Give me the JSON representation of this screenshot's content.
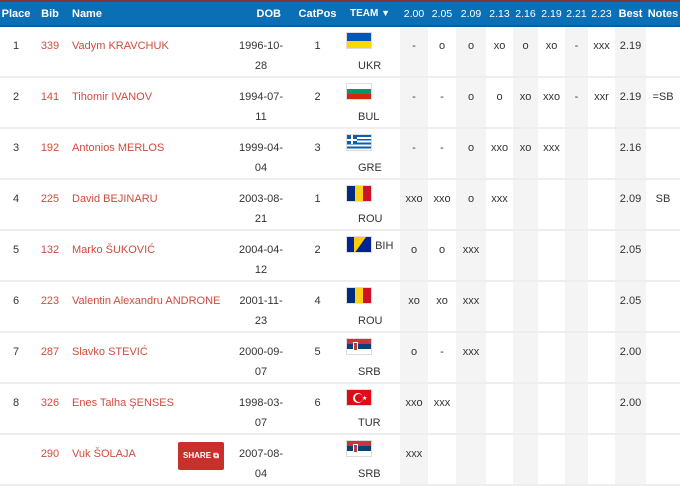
{
  "header": {
    "place": "Place",
    "bib": "Bib",
    "name": "Name",
    "dob": "DOB",
    "catpos": "CatPos",
    "team": "TEAM",
    "filter_icon": "filter-icon",
    "heights": [
      "2.00",
      "2.05",
      "2.09",
      "2.13",
      "2.16",
      "2.19",
      "2.21",
      "2.23"
    ],
    "best": "Best",
    "notes": "Notes"
  },
  "share_label": "SHARE",
  "rows": [
    {
      "place": "1",
      "bib": "339",
      "name": "Vadym KRAVCHUK",
      "dob": "1996-10-28",
      "catpos": "1",
      "team": "UKR",
      "flag": "ukr",
      "attempts": [
        "-",
        "o",
        "o",
        "xo",
        "o",
        "xo",
        "-",
        "xxx"
      ],
      "best": "2.19",
      "notes": ""
    },
    {
      "place": "2",
      "bib": "141",
      "name": "Tihomir IVANOV",
      "dob": "1994-07-11",
      "catpos": "2",
      "team": "BUL",
      "flag": "bul",
      "attempts": [
        "-",
        "-",
        "o",
        "o",
        "xo",
        "xxo",
        "-",
        "xxr"
      ],
      "best": "2.19",
      "notes": "=SB"
    },
    {
      "place": "3",
      "bib": "192",
      "name": "Antonios MERLOS",
      "dob": "1999-04-04",
      "catpos": "3",
      "team": "GRE",
      "flag": "gre",
      "attempts": [
        "-",
        "-",
        "o",
        "xxo",
        "xo",
        "xxx",
        "",
        ""
      ],
      "best": "2.16",
      "notes": ""
    },
    {
      "place": "4",
      "bib": "225",
      "name": "David BEJINARU",
      "dob": "2003-08-21",
      "catpos": "1",
      "team": "ROU",
      "flag": "rou",
      "attempts": [
        "xxo",
        "xxo",
        "o",
        "xxx",
        "",
        "",
        "",
        ""
      ],
      "best": "2.09",
      "notes": "SB"
    },
    {
      "place": "5",
      "bib": "132",
      "name": "Marko ŠUKOVIĆ",
      "dob": "2004-04-12",
      "catpos": "2",
      "team": "BIH",
      "flag": "bih",
      "attempts": [
        "o",
        "o",
        "xxx",
        "",
        "",
        "",
        "",
        ""
      ],
      "best": "2.05",
      "notes": ""
    },
    {
      "place": "6",
      "bib": "223",
      "name": "Valentin Alexandru ANDRONE",
      "dob": "2001-11-23",
      "catpos": "4",
      "team": "ROU",
      "flag": "rou",
      "attempts": [
        "xo",
        "xo",
        "xxx",
        "",
        "",
        "",
        "",
        ""
      ],
      "best": "2.05",
      "notes": ""
    },
    {
      "place": "7",
      "bib": "287",
      "name": "Slavko STEVIĆ",
      "dob": "2000-09-07",
      "catpos": "5",
      "team": "SRB",
      "flag": "srb",
      "attempts": [
        "o",
        "-",
        "xxx",
        "",
        "",
        "",
        "",
        ""
      ],
      "best": "2.00",
      "notes": ""
    },
    {
      "place": "8",
      "bib": "326",
      "name": "Enes Talha ŞENSES",
      "dob": "1998-03-07",
      "catpos": "6",
      "team": "TUR",
      "flag": "tur",
      "attempts": [
        "xxo",
        "xxx",
        "",
        "",
        "",
        "",
        "",
        ""
      ],
      "best": "2.00",
      "notes": ""
    },
    {
      "place": "",
      "bib": "290",
      "name": "Vuk ŠOLAJA",
      "dob": "2007-08-04",
      "catpos": "",
      "team": "SRB",
      "flag": "srb",
      "attempts": [
        "xxx",
        "",
        "",
        "",
        "",
        "",
        "",
        ""
      ],
      "best": "",
      "notes": "",
      "share": true
    }
  ]
}
